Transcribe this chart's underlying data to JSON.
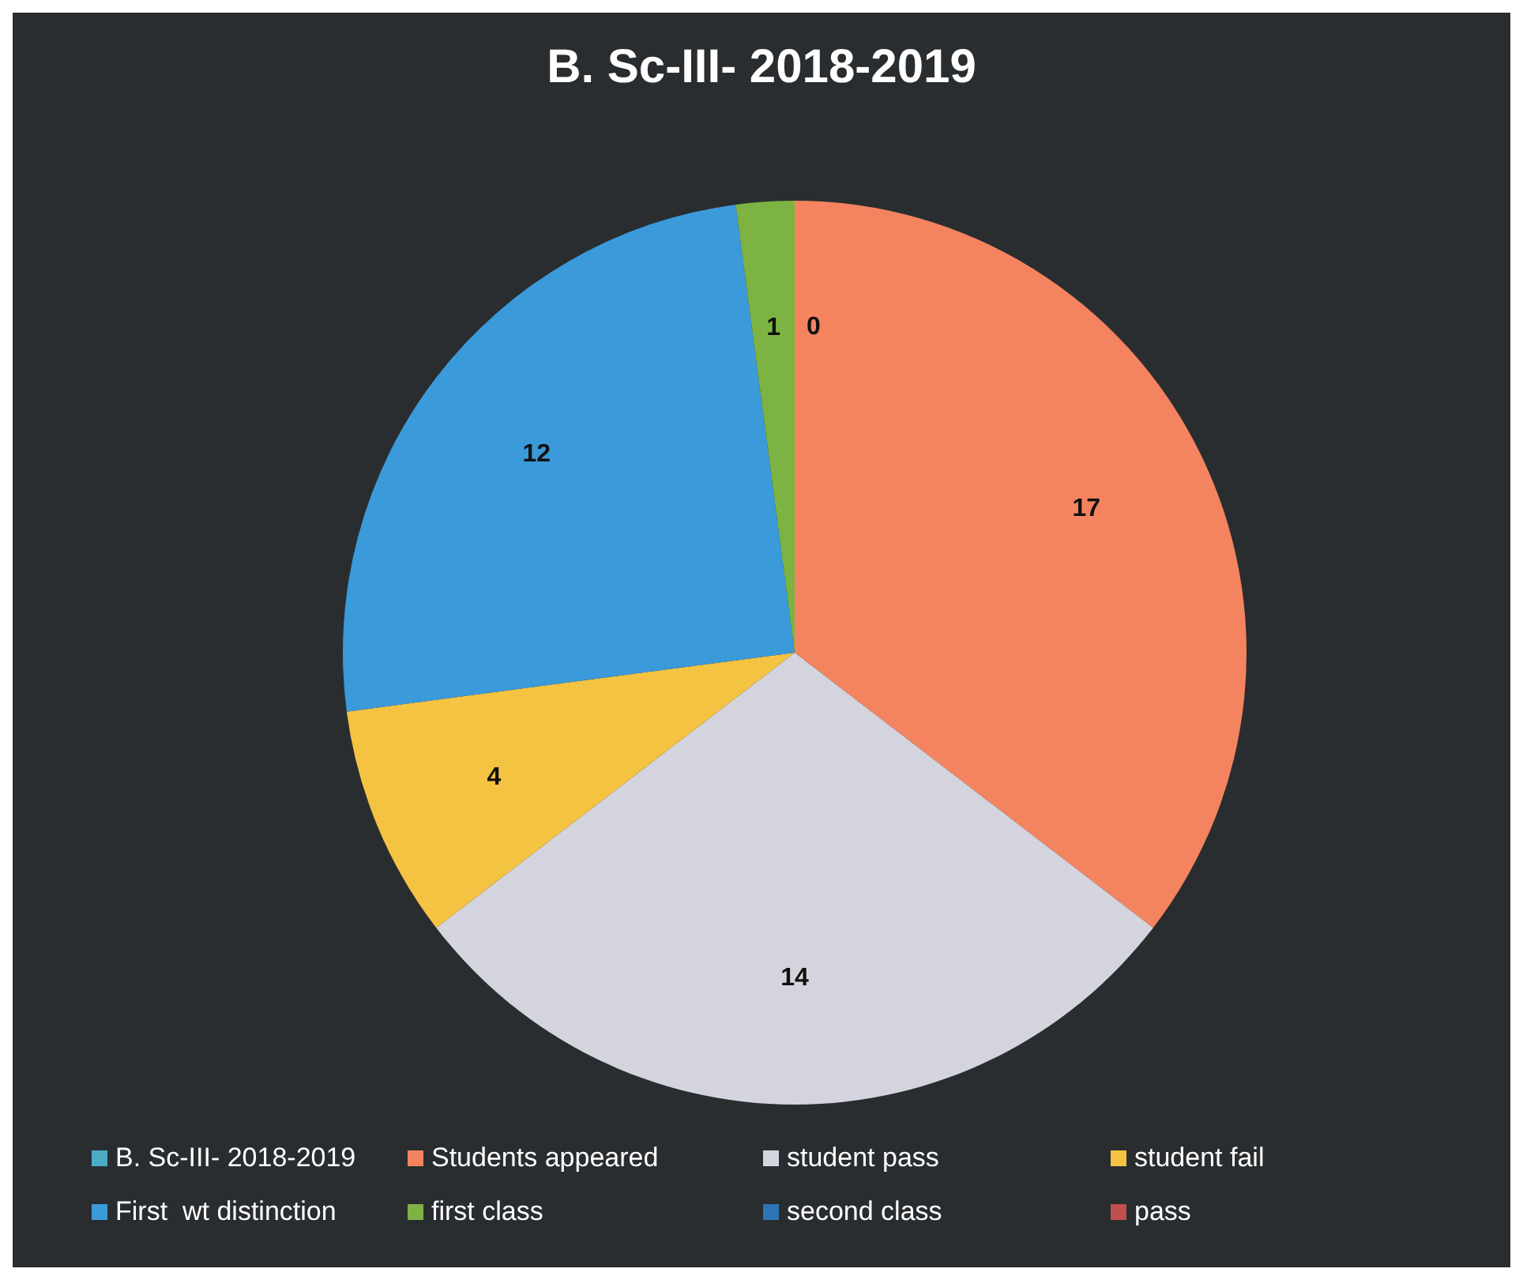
{
  "chart_data": {
    "type": "pie",
    "title": "B. Sc-III- 2018-2019",
    "categories": [
      "B. Sc-III- 2018-2019",
      "Students appeared",
      "student pass",
      "student fail",
      "First  wt distinction",
      "first class",
      "second class",
      "pass"
    ],
    "values": [
      null,
      17,
      14,
      4,
      12,
      1,
      0,
      null
    ],
    "colors": [
      "#4bacc6",
      "#f4845f",
      "#d4d4de",
      "#f5c342",
      "#3b9ad9",
      "#7cb342",
      "#2e75b6",
      "#c0504d"
    ],
    "value_labels": [
      null,
      "17",
      "14",
      "4",
      "12",
      "1",
      "0",
      null
    ],
    "legend": "bottom"
  }
}
